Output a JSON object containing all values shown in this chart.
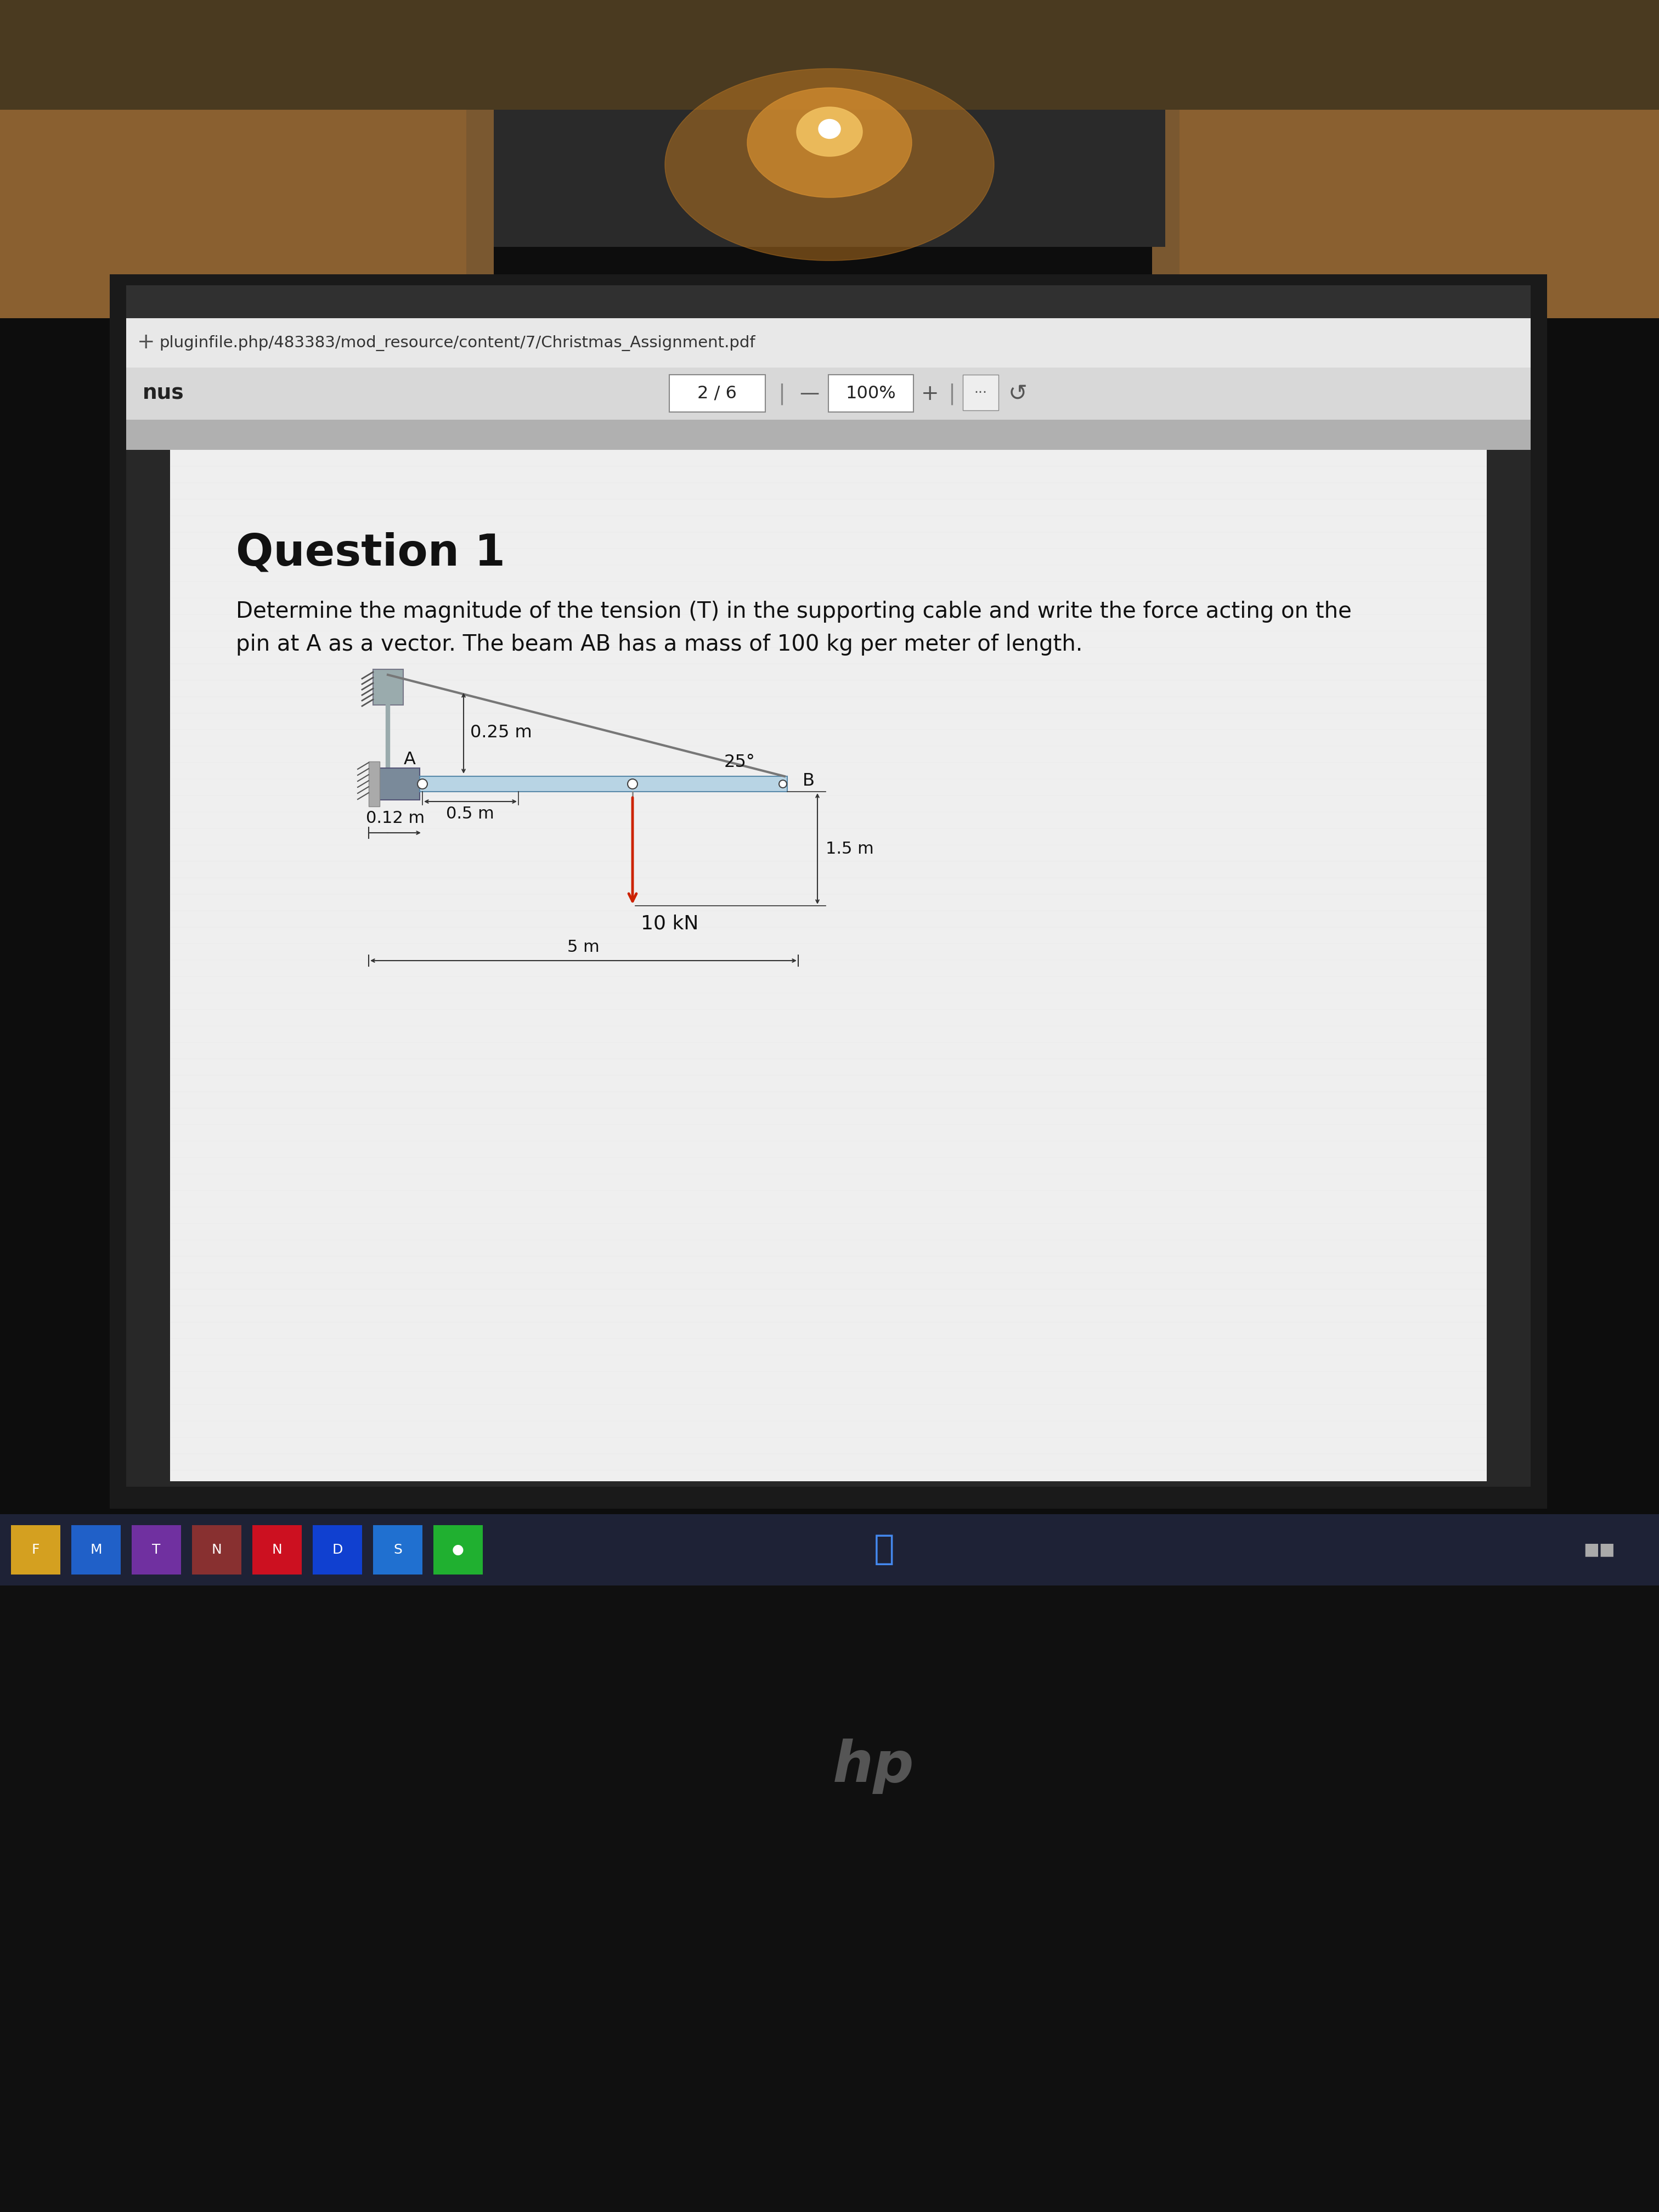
{
  "url": "pluginfile.php/483383/mod_resource/content/7/Christmas_Assignment.pdf",
  "nav_left": "nus",
  "page_text": "2 / 6",
  "zoom_text": "100%",
  "q_title": "Question 1",
  "q_line1": "Determine the magnitude of the tension (T) in the supporting cable and write the force acting on the",
  "q_line2": "pin at A as a vector. The beam AB has a mass of 100 kg per meter of length.",
  "lbl_025": "0.25 m",
  "lbl_05": "0.5 m",
  "lbl_012": "0.12 m",
  "lbl_15": "1.5 m",
  "lbl_10kn": "10 kN",
  "lbl_5m": "5 m",
  "lbl_25deg": "25°",
  "lbl_A": "A",
  "lbl_B": "B",
  "col_beam": "#b8d4e4",
  "col_beam_edge": "#5a8aaa",
  "col_cable": "#777777",
  "col_wall_bracket": "#7a8a9a",
  "col_wall_plate": "#aaaaaa",
  "col_hatch": "#555555",
  "col_arrow_red": "#cc2200",
  "col_dim": "#111111",
  "col_text": "#111111",
  "col_bg_room_top": "#8a6a40",
  "col_bg_room_side": "#a07840",
  "col_bg_laptop_bezel": "#151515",
  "col_bg_screen_dark": "#1a1a1a",
  "col_bg_browser_url": "#e8e8e8",
  "col_bg_browser_nav": "#d0d0d0",
  "col_bg_pdf_toolbar": "#aaaaaa",
  "col_bg_pdf_strip": "#c8c8c8",
  "col_bg_pdf": "#f0f0f0",
  "col_taskbar": "#1e2030",
  "col_taskbar_icon1": "#d4a020",
  "col_taskbar_icon2": "#2060c0",
  "col_taskbar_icon3": "#8030a0",
  "col_taskbar_icon4": "#883030",
  "col_taskbar_icon5": "#e01020",
  "col_taskbar_icon6": "#2040d0",
  "col_taskbar_icon7": "#2060c0",
  "col_taskbar_icon8": "#20a030"
}
